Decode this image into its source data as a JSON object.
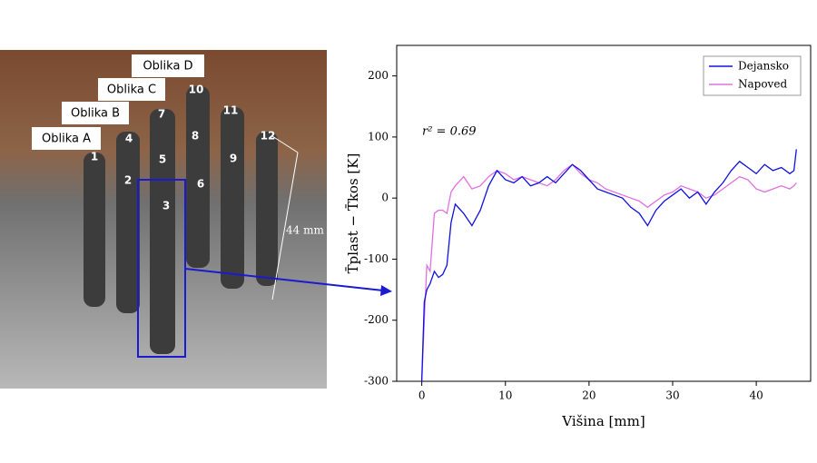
{
  "photo": {
    "shapes": [
      "Oblika A",
      "Oblika B",
      "Oblika C",
      "Oblika D"
    ],
    "numbers": [
      "1",
      "2",
      "3",
      "4",
      "5",
      "6",
      "7",
      "8",
      "9",
      "10",
      "11",
      "12"
    ],
    "dimension": "44 mm"
  },
  "chart_data": {
    "type": "line",
    "x": [
      0,
      0.3,
      0.6,
      1,
      1.5,
      2,
      2.5,
      3,
      3.5,
      4,
      5,
      6,
      7,
      8,
      9,
      10,
      11,
      12,
      13,
      14,
      15,
      16,
      17,
      18,
      19,
      20,
      21,
      22,
      23,
      24,
      25,
      26,
      27,
      28,
      29,
      30,
      31,
      32,
      33,
      34,
      35,
      36,
      37,
      38,
      39,
      40,
      41,
      42,
      43,
      44,
      44.5,
      44.8
    ],
    "series": [
      {
        "name": "Dejansko",
        "color": "#1010e0",
        "values": [
          -300,
          -170,
          -150,
          -140,
          -120,
          -130,
          -125,
          -110,
          -40,
          -10,
          -25,
          -45,
          -20,
          20,
          45,
          30,
          25,
          35,
          20,
          25,
          35,
          25,
          40,
          55,
          45,
          30,
          15,
          10,
          5,
          0,
          -15,
          -25,
          -45,
          -20,
          -5,
          5,
          15,
          0,
          10,
          -10,
          10,
          25,
          45,
          60,
          50,
          40,
          55,
          45,
          50,
          40,
          45,
          80
        ]
      },
      {
        "name": "Napoved",
        "color": "#e070e0",
        "values": [
          -300,
          -200,
          -110,
          -120,
          -25,
          -20,
          -20,
          -25,
          10,
          20,
          35,
          15,
          20,
          35,
          45,
          40,
          30,
          35,
          30,
          25,
          20,
          30,
          45,
          55,
          40,
          30,
          25,
          15,
          10,
          5,
          0,
          -5,
          -15,
          -5,
          5,
          10,
          20,
          15,
          10,
          0,
          5,
          15,
          25,
          35,
          30,
          15,
          10,
          15,
          20,
          15,
          20,
          25
        ]
      }
    ],
    "xlim": [
      -3,
      46.5
    ],
    "ylim": [
      -300,
      250
    ],
    "xticks": [
      0,
      10,
      20,
      30,
      40
    ],
    "yticks": [
      -300,
      -200,
      -100,
      0,
      100,
      200
    ],
    "x_label": "Višina [mm]",
    "y_label": "T̄plast − T̄kos [K]",
    "annotation": "r² = 0.69",
    "legend": "upper right"
  }
}
